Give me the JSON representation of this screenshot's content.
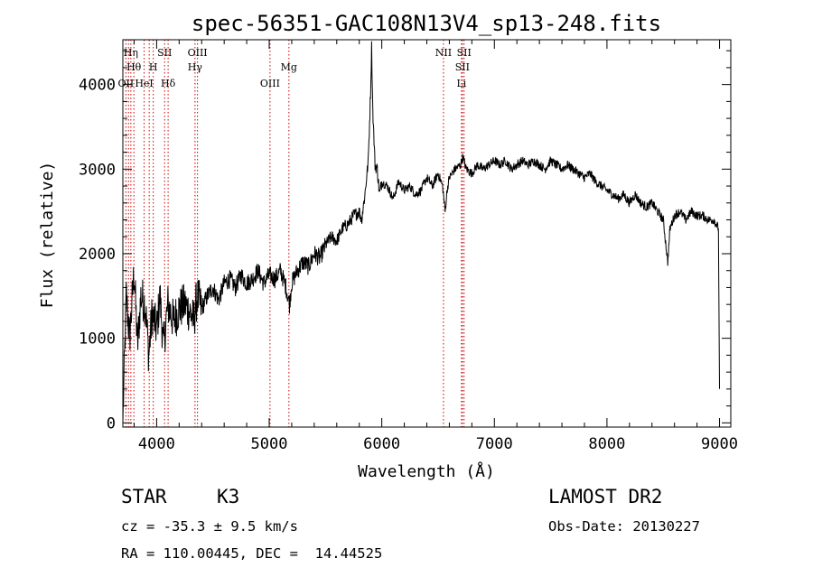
{
  "chart_data": {
    "type": "line",
    "title": "spec-56351-GAC108N13V4_sp13-248.fits",
    "xlabel": "Wavelength (Å)",
    "ylabel": "Flux (relative)",
    "xlim": [
      3700,
      9100
    ],
    "ylim": [
      -50,
      4530
    ],
    "x_ticks": [
      4000,
      5000,
      6000,
      7000,
      8000,
      9000
    ],
    "y_ticks": [
      0,
      1000,
      2000,
      3000,
      4000
    ],
    "grid": false,
    "line_color": "#000000",
    "marker_color": "#cc0000",
    "series": [
      {
        "x": [
          3700,
          3730,
          3760,
          3800,
          3830,
          3860,
          3900,
          3930,
          3960,
          4000,
          4030,
          4060,
          4100,
          4150,
          4200,
          4250,
          4300,
          4330,
          4360,
          4400,
          4450,
          4500,
          4550,
          4600,
          4650,
          4700,
          4750,
          4800,
          4850,
          4900,
          4950,
          5000,
          5050,
          5100,
          5150,
          5180,
          5200,
          5250,
          5300,
          5350,
          5400,
          5450,
          5500,
          5550,
          5600,
          5650,
          5700,
          5750,
          5800,
          5820,
          5850,
          5880,
          5900,
          5910,
          5920,
          5940,
          5960,
          5980,
          6000,
          6050,
          6100,
          6150,
          6200,
          6250,
          6300,
          6350,
          6400,
          6450,
          6500,
          6540,
          6563,
          6580,
          6600,
          6650,
          6700,
          6720,
          6750,
          6800,
          6850,
          6900,
          6950,
          7000,
          7050,
          7100,
          7150,
          7200,
          7250,
          7300,
          7350,
          7400,
          7450,
          7500,
          7550,
          7600,
          7650,
          7700,
          7750,
          7800,
          7850,
          7900,
          7950,
          8000,
          8050,
          8100,
          8150,
          8200,
          8250,
          8300,
          8350,
          8400,
          8450,
          8500,
          8540,
          8560,
          8600,
          8650,
          8700,
          8750,
          8800,
          8850,
          8900,
          8950,
          8990,
          9000
        ],
        "y": [
          0,
          1500,
          1000,
          1800,
          900,
          1500,
          1400,
          800,
          1300,
          1100,
          1500,
          900,
          1400,
          1200,
          1350,
          1400,
          1300,
          1200,
          1500,
          1350,
          1500,
          1600,
          1450,
          1650,
          1700,
          1600,
          1750,
          1650,
          1700,
          1800,
          1650,
          1750,
          1700,
          1800,
          1600,
          1400,
          1650,
          1800,
          1900,
          1850,
          2000,
          1950,
          2100,
          2200,
          2150,
          2300,
          2350,
          2450,
          2500,
          2400,
          2700,
          3100,
          3900,
          4450,
          3700,
          3050,
          3000,
          2700,
          2850,
          2800,
          2650,
          2850,
          2750,
          2800,
          2700,
          2750,
          2900,
          2800,
          2950,
          2800,
          2500,
          2750,
          2900,
          3000,
          3050,
          3150,
          3000,
          2950,
          3050,
          3000,
          3050,
          3100,
          3050,
          3100,
          3000,
          3050,
          3100,
          3050,
          3100,
          3050,
          3000,
          3100,
          3050,
          3000,
          3050,
          3000,
          2950,
          2900,
          2950,
          2850,
          2800,
          2750,
          2700,
          2650,
          2700,
          2600,
          2700,
          2600,
          2550,
          2600,
          2500,
          2400,
          1900,
          2300,
          2450,
          2500,
          2400,
          2500,
          2450,
          2450,
          2400,
          2400,
          2300,
          400
        ]
      }
    ],
    "line_markers": [
      {
        "wavelength": 3727,
        "label": "OII",
        "row": 3
      },
      {
        "wavelength": 3750,
        "label": "",
        "row": 0
      },
      {
        "wavelength": 3771,
        "label": "Hη",
        "row": 1
      },
      {
        "wavelength": 3798,
        "label": "Hθ",
        "row": 2
      },
      {
        "wavelength": 3889,
        "label": "HeI",
        "row": 3
      },
      {
        "wavelength": 3934,
        "label": "",
        "row": 0
      },
      {
        "wavelength": 3970,
        "label": "H",
        "row": 2
      },
      {
        "wavelength": 4071,
        "label": "SII",
        "row": 1
      },
      {
        "wavelength": 4102,
        "label": "Hδ",
        "row": 3
      },
      {
        "wavelength": 4341,
        "label": "Hγ",
        "row": 2
      },
      {
        "wavelength": 4363,
        "label": "OIII",
        "row": 1
      },
      {
        "wavelength": 5007,
        "label": "OIII",
        "row": 3
      },
      {
        "wavelength": 5175,
        "label": "Mg",
        "row": 2
      },
      {
        "wavelength": 6548,
        "label": "NII",
        "row": 1
      },
      {
        "wavelength": 6708,
        "label": "Li",
        "row": 3
      },
      {
        "wavelength": 6716,
        "label": "SII",
        "row": 2
      },
      {
        "wavelength": 6731,
        "label": "SII",
        "row": 1
      }
    ]
  },
  "info": {
    "object_class": "STAR",
    "subclass": "K3",
    "survey": "LAMOST DR2",
    "cz_line": "cz = -35.3 ± 9.5 km/s",
    "obs_date": "Obs-Date: 20130227",
    "radec_line": "RA = 110.00445, DEC =  14.44525"
  }
}
